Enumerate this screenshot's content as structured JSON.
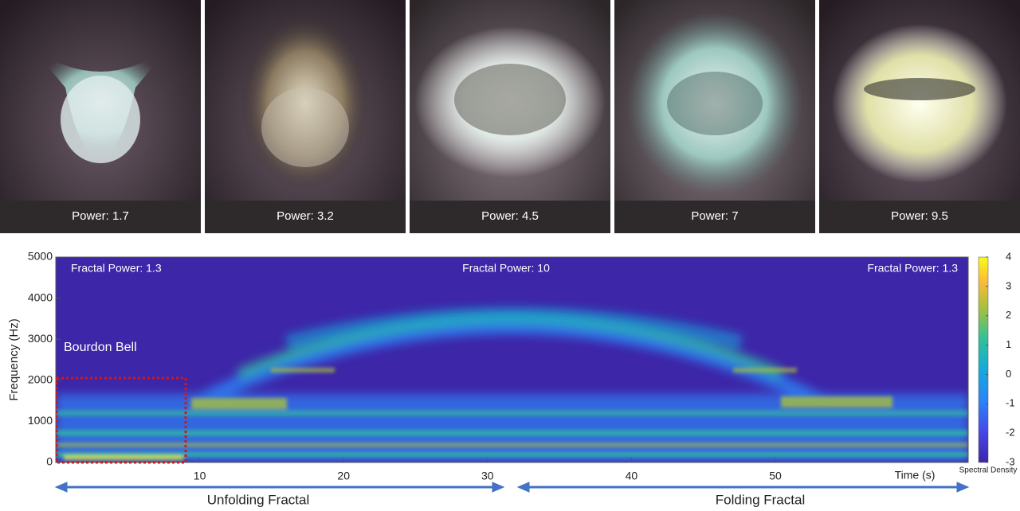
{
  "panels": [
    {
      "label": "Power: 1.7"
    },
    {
      "label": "Power: 3.2"
    },
    {
      "label": "Power: 4.5"
    },
    {
      "label": "Power: 7"
    },
    {
      "label": "Power: 9.5"
    }
  ],
  "chart_data": {
    "type": "heatmap",
    "xlabel": "Time (s)",
    "ylabel": "Frequency (Hz)",
    "xlim": [
      0,
      63.4
    ],
    "xticks": [
      10,
      20,
      30,
      40,
      50
    ],
    "ylim": [
      0,
      5000
    ],
    "yticks": [
      0,
      1000,
      2000,
      3000,
      4000,
      5000
    ],
    "colorbar_label": "Spectral Density",
    "clim": [
      -3,
      4
    ],
    "cticks": [
      -3,
      -2,
      -1,
      0,
      1,
      2,
      3,
      4
    ],
    "annotations": [
      "Fractal Power: 1.3",
      "Fractal Power: 10",
      "Fractal Power: 1.3",
      "Bourdon Bell"
    ],
    "arrows": [
      "Unfolding Fractal",
      "Folding Fractal"
    ]
  }
}
